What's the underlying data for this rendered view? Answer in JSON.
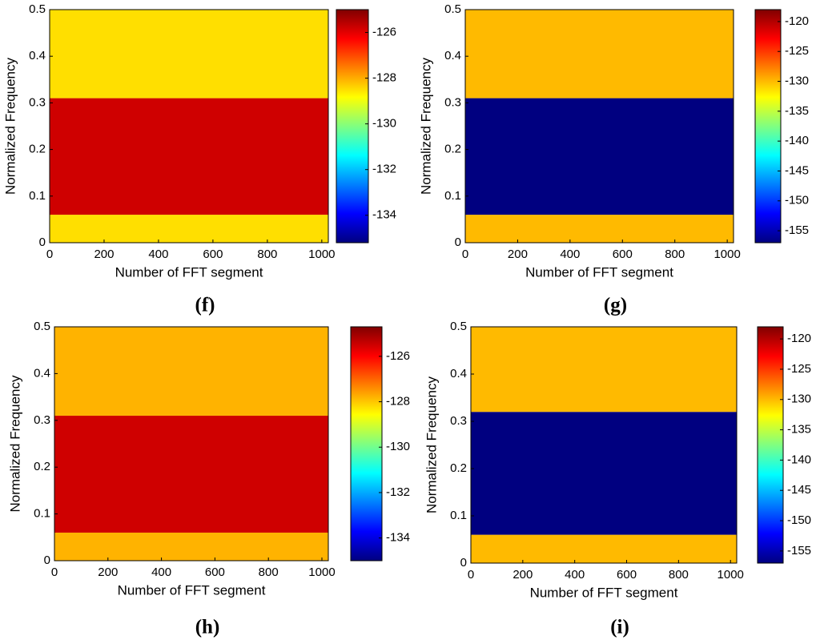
{
  "chart_data": [
    {
      "type": "heatmap",
      "label": "(f)",
      "xlabel": "Number of FFT segment",
      "ylabel": "Normalized Frequency",
      "xlim": [
        0,
        1024
      ],
      "xticks": [
        0,
        200,
        400,
        600,
        800,
        1000
      ],
      "ylim": [
        0,
        0.5
      ],
      "yticks": [
        0,
        0.1,
        0.2,
        0.3,
        0.4,
        0.5
      ],
      "y_bins": [
        0,
        0.06,
        0.31,
        0.5
      ],
      "values": [
        -128.5,
        -125.8,
        -128.5
      ],
      "colormap": "jet",
      "colorbar": {
        "lim": [
          -135.2,
          -125
        ],
        "ticks": [
          -134,
          -132,
          -130,
          -128,
          -126
        ]
      }
    },
    {
      "type": "heatmap",
      "label": "(g)",
      "xlabel": "Number of FFT segment",
      "ylabel": "Normalized Frequency",
      "xlim": [
        0,
        1024
      ],
      "xticks": [
        0,
        200,
        400,
        600,
        800,
        1000
      ],
      "ylim": [
        0,
        0.5
      ],
      "yticks": [
        0,
        0.1,
        0.2,
        0.3,
        0.4,
        0.5
      ],
      "y_bins": [
        0,
        0.06,
        0.31,
        0.5
      ],
      "values": [
        -130,
        -157,
        -130
      ],
      "colormap": "jet",
      "colorbar": {
        "lim": [
          -157,
          -118
        ],
        "ticks": [
          -155,
          -150,
          -145,
          -140,
          -135,
          -130,
          -125,
          -120
        ]
      }
    },
    {
      "type": "heatmap",
      "label": "(h)",
      "xlabel": "Number of FFT segment",
      "ylabel": "Normalized Frequency",
      "xlim": [
        0,
        1024
      ],
      "xticks": [
        0,
        200,
        400,
        600,
        800,
        1000
      ],
      "ylim": [
        0,
        0.5
      ],
      "yticks": [
        0,
        0.1,
        0.2,
        0.3,
        0.4,
        0.5
      ],
      "y_bins": [
        0,
        0.06,
        0.31,
        0.5
      ],
      "values": [
        -127.8,
        -125.5,
        -127.8
      ],
      "colormap": "jet",
      "colorbar": {
        "lim": [
          -135,
          -124.7
        ],
        "ticks": [
          -134,
          -132,
          -130,
          -128,
          -126
        ]
      }
    },
    {
      "type": "heatmap",
      "label": "(i)",
      "xlabel": "Number of FFT segment",
      "ylabel": "Normalized Frequency",
      "xlim": [
        0,
        1024
      ],
      "xticks": [
        0,
        200,
        400,
        600,
        800,
        1000
      ],
      "ylim": [
        0,
        0.5
      ],
      "yticks": [
        0,
        0.1,
        0.2,
        0.3,
        0.4,
        0.5
      ],
      "y_bins": [
        0,
        0.06,
        0.32,
        0.5
      ],
      "values": [
        -130,
        -157,
        -130
      ],
      "colormap": "jet",
      "colorbar": {
        "lim": [
          -157,
          -118
        ],
        "ticks": [
          -155,
          -150,
          -145,
          -140,
          -135,
          -130,
          -125,
          -120
        ]
      }
    }
  ]
}
